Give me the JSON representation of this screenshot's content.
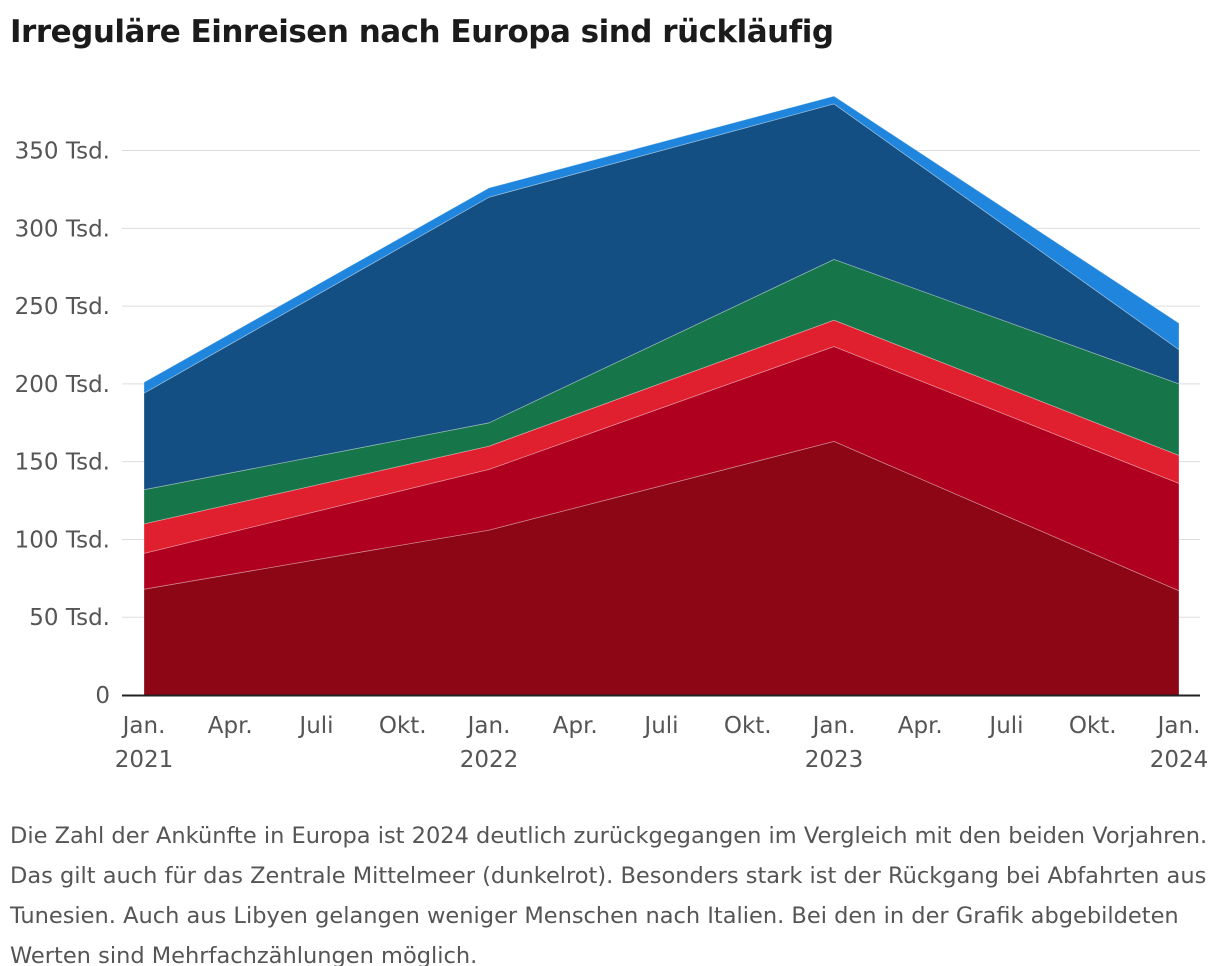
{
  "chart_data": {
    "type": "area",
    "stacked": true,
    "title": "Irreguläre Einreisen nach Europa sind rückläufig",
    "xlabel": "",
    "ylabel": "",
    "ylim": [
      0,
      385
    ],
    "grid": true,
    "x": [
      "Jan. 2021",
      "Jan. 2022",
      "Jan. 2023",
      "Jan. 2024"
    ],
    "x_ticks": [
      {
        "label": "Jan.",
        "year": "2021"
      },
      {
        "label": "Apr.",
        "year": ""
      },
      {
        "label": "Juli",
        "year": ""
      },
      {
        "label": "Okt.",
        "year": ""
      },
      {
        "label": "Jan.",
        "year": "2022"
      },
      {
        "label": "Apr.",
        "year": ""
      },
      {
        "label": "Juli",
        "year": ""
      },
      {
        "label": "Okt.",
        "year": ""
      },
      {
        "label": "Jan.",
        "year": "2023"
      },
      {
        "label": "Apr.",
        "year": ""
      },
      {
        "label": "Juli",
        "year": ""
      },
      {
        "label": "Okt.",
        "year": ""
      },
      {
        "label": "Jan.",
        "year": "2024"
      }
    ],
    "y_ticks": [
      {
        "value": 0,
        "label": "0"
      },
      {
        "value": 50,
        "label": "50 Tsd."
      },
      {
        "value": 100,
        "label": "100 Tsd."
      },
      {
        "value": 150,
        "label": "150 Tsd."
      },
      {
        "value": 200,
        "label": "200 Tsd."
      },
      {
        "value": 250,
        "label": "250 Tsd."
      },
      {
        "value": 300,
        "label": "300 Tsd."
      },
      {
        "value": 350,
        "label": "350 Tsd."
      }
    ],
    "series": [
      {
        "color": "#8c0615",
        "values": [
          68,
          106,
          163,
          67
        ]
      },
      {
        "color": "#b0001f",
        "values": [
          23,
          39,
          61,
          69
        ]
      },
      {
        "color": "#e1202f",
        "values": [
          19,
          15,
          17,
          18
        ]
      },
      {
        "color": "#17754a",
        "values": [
          22,
          15,
          39,
          46
        ]
      },
      {
        "color": "#134f82",
        "values": [
          62,
          145,
          100,
          22
        ]
      },
      {
        "color": "#2086dd",
        "values": [
          7,
          6,
          5,
          17
        ]
      }
    ]
  },
  "caption": "Die Zahl der Ankünfte in Europa ist 2024 deutlich zurückgegangen im Vergleich mit den beiden Vorjahren. Das gilt auch für das Zentrale Mittelmeer (dunkelrot). Besonders stark ist der Rückgang bei Abfahrten aus Tunesien. Auch aus Libyen gelangen weniger Menschen nach Italien. Bei den in der Grafik abgebildeten Werten sind Mehrfachzählungen möglich."
}
